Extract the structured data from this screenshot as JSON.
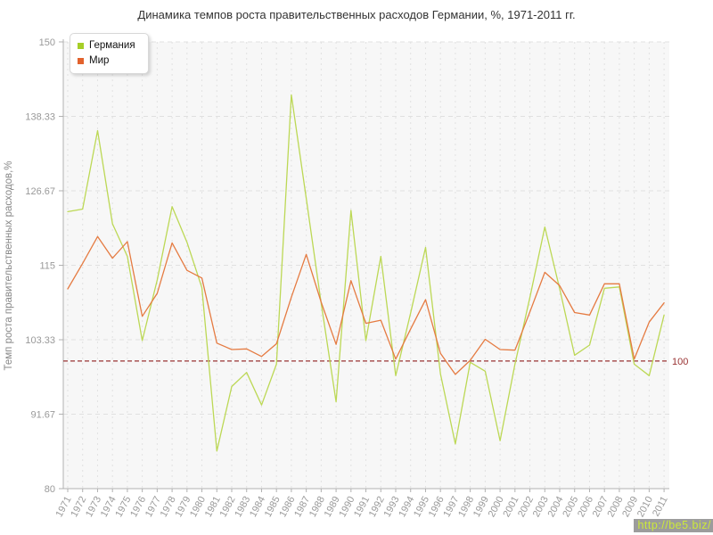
{
  "title": "Динамика темпов роста правительственных расходов Германии, %, 1971-2011 гг.",
  "y_axis_title": "Темп роста правительственных расходов,%",
  "legend": {
    "items": [
      {
        "label": "Германия",
        "color": "#a6ce27"
      },
      {
        "label": "Мир",
        "color": "#e2622d"
      }
    ]
  },
  "reference_line": {
    "value": 100,
    "label": "100",
    "color": "#993333"
  },
  "watermark": {
    "text": "http://be5.biz/",
    "bg": "#9c9c9c",
    "color": "#cce93a"
  },
  "chart_data": {
    "type": "line",
    "title": "Динамика темпов роста правительственных расходов Германии, %, 1971-2011 гг.",
    "xlabel": "",
    "ylabel": "Темп роста правительственных расходов,%",
    "ylim": [
      80,
      150
    ],
    "yticks": [
      80,
      91.67,
      103.33,
      115,
      126.67,
      138.33,
      150
    ],
    "ytick_labels": [
      "80",
      "91.67",
      "103.33",
      "115",
      "126.67",
      "138.33",
      "150"
    ],
    "grid": true,
    "legend_position": "top-left",
    "x": [
      1971,
      1972,
      1973,
      1974,
      1975,
      1976,
      1977,
      1978,
      1979,
      1980,
      1981,
      1982,
      1983,
      1984,
      1985,
      1986,
      1987,
      1988,
      1989,
      1990,
      1991,
      1992,
      1993,
      1994,
      1995,
      1996,
      1997,
      1998,
      1999,
      2000,
      2001,
      2002,
      2003,
      2004,
      2005,
      2006,
      2007,
      2008,
      2009,
      2010,
      2011
    ],
    "series": [
      {
        "name": "Германия",
        "color": "#a6ce27",
        "line_color": "#bcd855",
        "values": [
          123.4,
          123.8,
          136.1,
          121.5,
          116.4,
          103.2,
          112.7,
          124.2,
          118.6,
          111.5,
          85.9,
          96.0,
          98.2,
          93.1,
          99.5,
          141.7,
          125.5,
          109.0,
          93.6,
          123.6,
          103.2,
          116.4,
          97.7,
          107.5,
          117.8,
          98.0,
          87.0,
          99.8,
          98.4,
          87.5,
          99.5,
          110.0,
          121.0,
          111.3,
          100.9,
          102.5,
          111.4,
          111.6,
          99.5,
          97.7,
          107.2
        ]
      },
      {
        "name": "Мир",
        "color": "#e2622d",
        "line_color": "#e57b42",
        "values": [
          111.3,
          115.3,
          119.5,
          116.1,
          118.7,
          107.0,
          110.6,
          118.5,
          114.2,
          113.0,
          102.8,
          101.8,
          101.9,
          100.7,
          102.7,
          110.0,
          116.7,
          109.2,
          102.6,
          112.6,
          105.9,
          106.4,
          100.3,
          105.0,
          109.6,
          101.2,
          97.9,
          100.1,
          103.4,
          101.8,
          101.7,
          107.7,
          113.9,
          111.8,
          107.6,
          107.2,
          112.1,
          112.1,
          100.3,
          106.1,
          109.1
        ]
      }
    ]
  }
}
